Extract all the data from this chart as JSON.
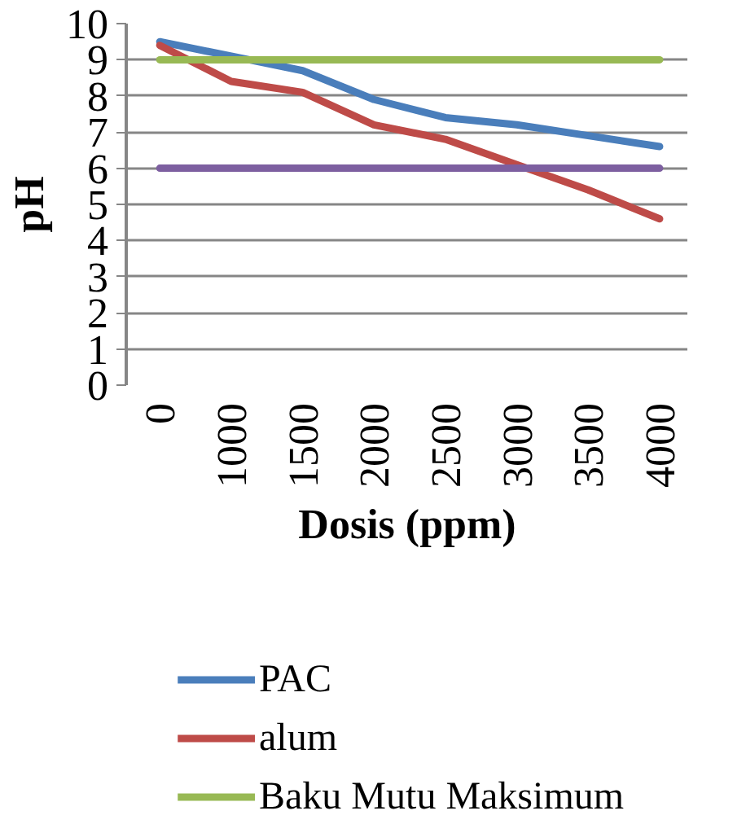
{
  "chart_data": {
    "type": "line",
    "xlabel": "Dosis (ppm)",
    "ylabel": "pH",
    "categories": [
      "0",
      "1000",
      "1500",
      "2000",
      "2500",
      "3000",
      "3500",
      "4000"
    ],
    "series": [
      {
        "name": "PAC",
        "color": "#4a7ebb",
        "values": [
          9.5,
          9.1,
          8.7,
          7.9,
          7.4,
          7.2,
          6.9,
          6.6
        ]
      },
      {
        "name": "alum",
        "color": "#be4b48",
        "values": [
          9.4,
          8.4,
          8.1,
          7.2,
          6.8,
          6.1,
          5.4,
          4.6
        ]
      },
      {
        "name": "Baku Mutu Maksimum",
        "color": "#98b954",
        "values": [
          9,
          9,
          9,
          9,
          9,
          9,
          9,
          9
        ]
      },
      {
        "color": "#7d5fa0",
        "values": [
          6,
          6,
          6,
          6,
          6,
          6,
          6,
          6
        ]
      }
    ],
    "ylim": [
      0,
      10
    ],
    "yticks": [
      0,
      1,
      2,
      3,
      4,
      5,
      6,
      7,
      8,
      9,
      10
    ],
    "grid": "y",
    "legend": "bottom",
    "marker": "none",
    "line_style": "solid"
  }
}
